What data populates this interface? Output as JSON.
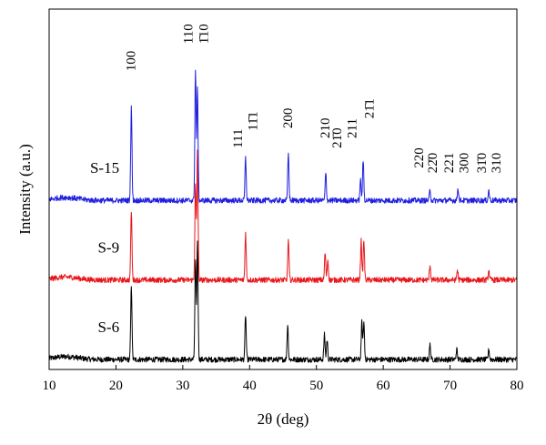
{
  "chart_data": {
    "type": "line",
    "xlabel": "2θ (deg)",
    "ylabel": "Intensity (a.u.)",
    "xlim": [
      10,
      80
    ],
    "xticks": [
      10,
      20,
      30,
      40,
      50,
      60,
      70,
      80
    ],
    "grid": false,
    "legend": "none",
    "series": [
      {
        "name": "S-6",
        "color": "#000000",
        "baseline": 0.04,
        "peaks": [
          [
            22.3,
            0.3
          ],
          [
            31.9,
            0.39
          ],
          [
            32.2,
            0.48
          ],
          [
            39.4,
            0.18
          ],
          [
            45.7,
            0.14
          ],
          [
            51.2,
            0.1
          ],
          [
            51.6,
            0.08
          ],
          [
            56.8,
            0.15
          ],
          [
            57.1,
            0.15
          ],
          [
            67.0,
            0.06
          ],
          [
            71.0,
            0.04
          ],
          [
            75.8,
            0.04
          ]
        ]
      },
      {
        "name": "S-9",
        "color": "#e8161b",
        "baseline": 0.36,
        "peaks": [
          [
            22.3,
            0.28
          ],
          [
            31.9,
            0.38
          ],
          [
            32.2,
            0.52
          ],
          [
            39.4,
            0.19
          ],
          [
            45.8,
            0.16
          ],
          [
            51.3,
            0.11
          ],
          [
            51.7,
            0.08
          ],
          [
            56.7,
            0.16
          ],
          [
            57.1,
            0.16
          ],
          [
            67.0,
            0.06
          ],
          [
            71.1,
            0.04
          ],
          [
            75.8,
            0.04
          ]
        ]
      },
      {
        "name": "S-15",
        "color": "#1f1fe0",
        "baseline": 0.68,
        "peaks": [
          [
            22.3,
            0.38
          ],
          [
            31.9,
            0.52
          ],
          [
            32.2,
            0.45
          ],
          [
            39.4,
            0.17
          ],
          [
            45.8,
            0.19
          ],
          [
            51.4,
            0.11
          ],
          [
            56.6,
            0.08
          ],
          [
            57.0,
            0.16
          ],
          [
            67.0,
            0.04
          ],
          [
            71.2,
            0.05
          ],
          [
            75.8,
            0.04
          ]
        ]
      }
    ],
    "annotations": [
      {
        "text": "100",
        "x": 22.3,
        "y": 1.2
      },
      {
        "text": "110",
        "x": 30.9,
        "y": 1.31
      },
      {
        "text": "1̄10",
        "x": 33.2,
        "y": 1.31
      },
      {
        "text": "111",
        "x": 38.3,
        "y": 0.89
      },
      {
        "text": "11̄1",
        "x": 40.6,
        "y": 0.96
      },
      {
        "text": "200",
        "x": 45.8,
        "y": 0.97
      },
      {
        "text": "210",
        "x": 51.4,
        "y": 0.93
      },
      {
        "text": "21̄0",
        "x": 53.2,
        "y": 0.89
      },
      {
        "text": "211",
        "x": 55.4,
        "y": 0.93
      },
      {
        "text": "21̄1",
        "x": 58.0,
        "y": 1.01
      },
      {
        "text": "220",
        "x": 65.4,
        "y": 0.81
      },
      {
        "text": "22̄0",
        "x": 67.5,
        "y": 0.79
      },
      {
        "text": "221",
        "x": 69.9,
        "y": 0.79
      },
      {
        "text": "300",
        "x": 72.2,
        "y": 0.79
      },
      {
        "text": "31̄0",
        "x": 74.8,
        "y": 0.79
      },
      {
        "text": "310",
        "x": 77.0,
        "y": 0.79
      }
    ]
  }
}
